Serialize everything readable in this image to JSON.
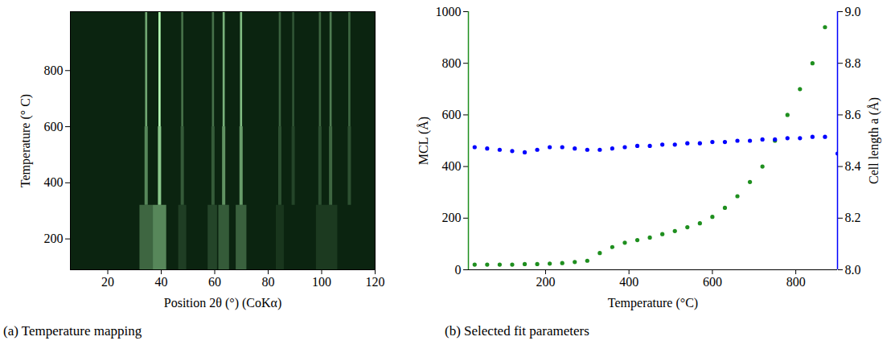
{
  "chart_data": [
    {
      "type": "heatmap",
      "caption": "(a) Temperature mapping",
      "xlabel": "Position 2θ (°) (CoKα)",
      "ylabel": "Temperature (° C)",
      "xlim": [
        6,
        120
      ],
      "xticks": [
        20,
        40,
        60,
        80,
        100,
        120
      ],
      "ylim": [
        90,
        1010
      ],
      "yticks": [
        200,
        400,
        600,
        800
      ],
      "cells": [
        {
          "x1": 32,
          "x2": 37,
          "y1": 90,
          "y2": 320,
          "value": 0.3
        },
        {
          "x1": 37,
          "x2": 42,
          "y1": 90,
          "y2": 320,
          "value": 0.45
        },
        {
          "x1": 46.5,
          "x2": 49.5,
          "y1": 90,
          "y2": 320,
          "value": 0.12
        },
        {
          "x1": 57.5,
          "x2": 61,
          "y1": 90,
          "y2": 320,
          "value": 0.15
        },
        {
          "x1": 61.5,
          "x2": 65.5,
          "y1": 90,
          "y2": 320,
          "value": 0.25
        },
        {
          "x1": 68,
          "x2": 72,
          "y1": 90,
          "y2": 320,
          "value": 0.28
        },
        {
          "x1": 83,
          "x2": 86,
          "y1": 90,
          "y2": 320,
          "value": 0.08
        },
        {
          "x1": 98,
          "x2": 106,
          "y1": 90,
          "y2": 320,
          "value": 0.1
        },
        {
          "x1": 33.9,
          "x2": 35.1,
          "y1": 320,
          "y2": 600,
          "value": 0.45
        },
        {
          "x1": 38.9,
          "x2": 40.1,
          "y1": 320,
          "y2": 600,
          "value": 0.75
        },
        {
          "x1": 47.4,
          "x2": 48.6,
          "y1": 320,
          "y2": 600,
          "value": 0.25
        },
        {
          "x1": 58.9,
          "x2": 60.1,
          "y1": 320,
          "y2": 600,
          "value": 0.25
        },
        {
          "x1": 62.9,
          "x2": 64.1,
          "y1": 320,
          "y2": 600,
          "value": 0.5
        },
        {
          "x1": 69.4,
          "x2": 70.6,
          "y1": 320,
          "y2": 600,
          "value": 0.55
        },
        {
          "x1": 83.9,
          "x2": 85.1,
          "y1": 320,
          "y2": 600,
          "value": 0.2
        },
        {
          "x1": 88.9,
          "x2": 90.1,
          "y1": 320,
          "y2": 600,
          "value": 0.15
        },
        {
          "x1": 98.9,
          "x2": 100.1,
          "y1": 320,
          "y2": 600,
          "value": 0.2
        },
        {
          "x1": 102.9,
          "x2": 104.1,
          "y1": 320,
          "y2": 600,
          "value": 0.3
        },
        {
          "x1": 109.9,
          "x2": 111.1,
          "y1": 320,
          "y2": 600,
          "value": 0.2
        },
        {
          "x1": 34.1,
          "x2": 34.9,
          "y1": 600,
          "y2": 1010,
          "value": 0.6
        },
        {
          "x1": 39.1,
          "x2": 39.9,
          "y1": 600,
          "y2": 1010,
          "value": 1
        },
        {
          "x1": 47.6,
          "x2": 48.4,
          "y1": 600,
          "y2": 1010,
          "value": 0.35
        },
        {
          "x1": 59.1,
          "x2": 59.9,
          "y1": 600,
          "y2": 1010,
          "value": 0.35
        },
        {
          "x1": 63.1,
          "x2": 63.9,
          "y1": 600,
          "y2": 1010,
          "value": 0.65
        },
        {
          "x1": 69.6,
          "x2": 70.4,
          "y1": 600,
          "y2": 1010,
          "value": 0.7
        },
        {
          "x1": 84.1,
          "x2": 84.9,
          "y1": 600,
          "y2": 1010,
          "value": 0.28
        },
        {
          "x1": 89.1,
          "x2": 89.9,
          "y1": 600,
          "y2": 1010,
          "value": 0.22
        },
        {
          "x1": 99.1,
          "x2": 99.9,
          "y1": 600,
          "y2": 1010,
          "value": 0.3
        },
        {
          "x1": 103.1,
          "x2": 103.9,
          "y1": 600,
          "y2": 1010,
          "value": 0.4
        },
        {
          "x1": 110.1,
          "x2": 110.9,
          "y1": 600,
          "y2": 1010,
          "value": 0.3
        }
      ]
    },
    {
      "type": "scatter",
      "caption": "(b) Selected fit parameters",
      "xlabel": "Temperature (°C)",
      "x": [
        30,
        60,
        90,
        120,
        150,
        180,
        210,
        240,
        270,
        300,
        330,
        360,
        390,
        420,
        450,
        480,
        510,
        540,
        570,
        600,
        630,
        660,
        690,
        720,
        750,
        780,
        810,
        840,
        870,
        900
      ],
      "xlim": [
        15,
        900
      ],
      "xticks": [
        200,
        400,
        600,
        800
      ],
      "ylim": [
        0,
        1000
      ],
      "yticks": [
        0,
        200,
        400,
        600,
        800,
        1000
      ],
      "y2lim": [
        8,
        9
      ],
      "y2ticks": [
        {
          "value": 8,
          "label": "8.0"
        },
        8.2,
        8.4,
        8.6,
        8.8,
        {
          "value": 9,
          "label": "9.0"
        }
      ],
      "series": [
        {
          "name": "MCL (Å)",
          "color": "#1f8f1f",
          "marker": "circle",
          "values": [
            20,
            20,
            20,
            20,
            22,
            22,
            24,
            26,
            30,
            35,
            65,
            88,
            105,
            115,
            125,
            138,
            150,
            165,
            180,
            205,
            240,
            285,
            340,
            400,
            500,
            600,
            700,
            800,
            940,
            null
          ]
        },
        {
          "name": "Cell length a (Å)",
          "color": "#0000ff",
          "marker": "circle",
          "axis": "y2",
          "values": [
            8.475,
            8.47,
            8.465,
            8.46,
            8.455,
            8.465,
            8.475,
            8.475,
            8.47,
            8.465,
            8.465,
            8.47,
            8.475,
            8.48,
            8.48,
            8.485,
            8.485,
            8.49,
            8.49,
            8.495,
            8.495,
            8.5,
            8.5,
            8.505,
            8.505,
            8.51,
            8.51,
            8.515,
            8.515,
            8.45
          ]
        }
      ]
    }
  ]
}
